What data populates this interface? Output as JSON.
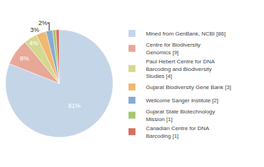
{
  "chart_data": {
    "type": "pie",
    "categories": [
      "Mined from GenBank, NCBI [86]",
      "Centre for Biodiversity\nGenomics [9]",
      "Paul Hebert Centre for DNA\nBarcoding and Biodiversity\nStudies [4]",
      "Gujarat Biodiversity Gene Bank [3]",
      "Wellcome Sanger Institute [2]",
      "Gujarat State Biotechnology\nMission [1]",
      "Canadian Centre for DNA\nBarcoding [1]"
    ],
    "values": [
      81,
      8,
      4,
      3,
      2,
      1,
      1
    ],
    "value_labels": [
      "81%",
      "8%",
      "4%",
      "3%",
      "2%",
      null,
      null
    ],
    "data_labels": true,
    "colors": [
      "#c5d5e8",
      "#e8a898",
      "#d4d890",
      "#f0b870",
      "#8aaad0",
      "#a8c870",
      "#d87060"
    ],
    "legend": "right"
  }
}
